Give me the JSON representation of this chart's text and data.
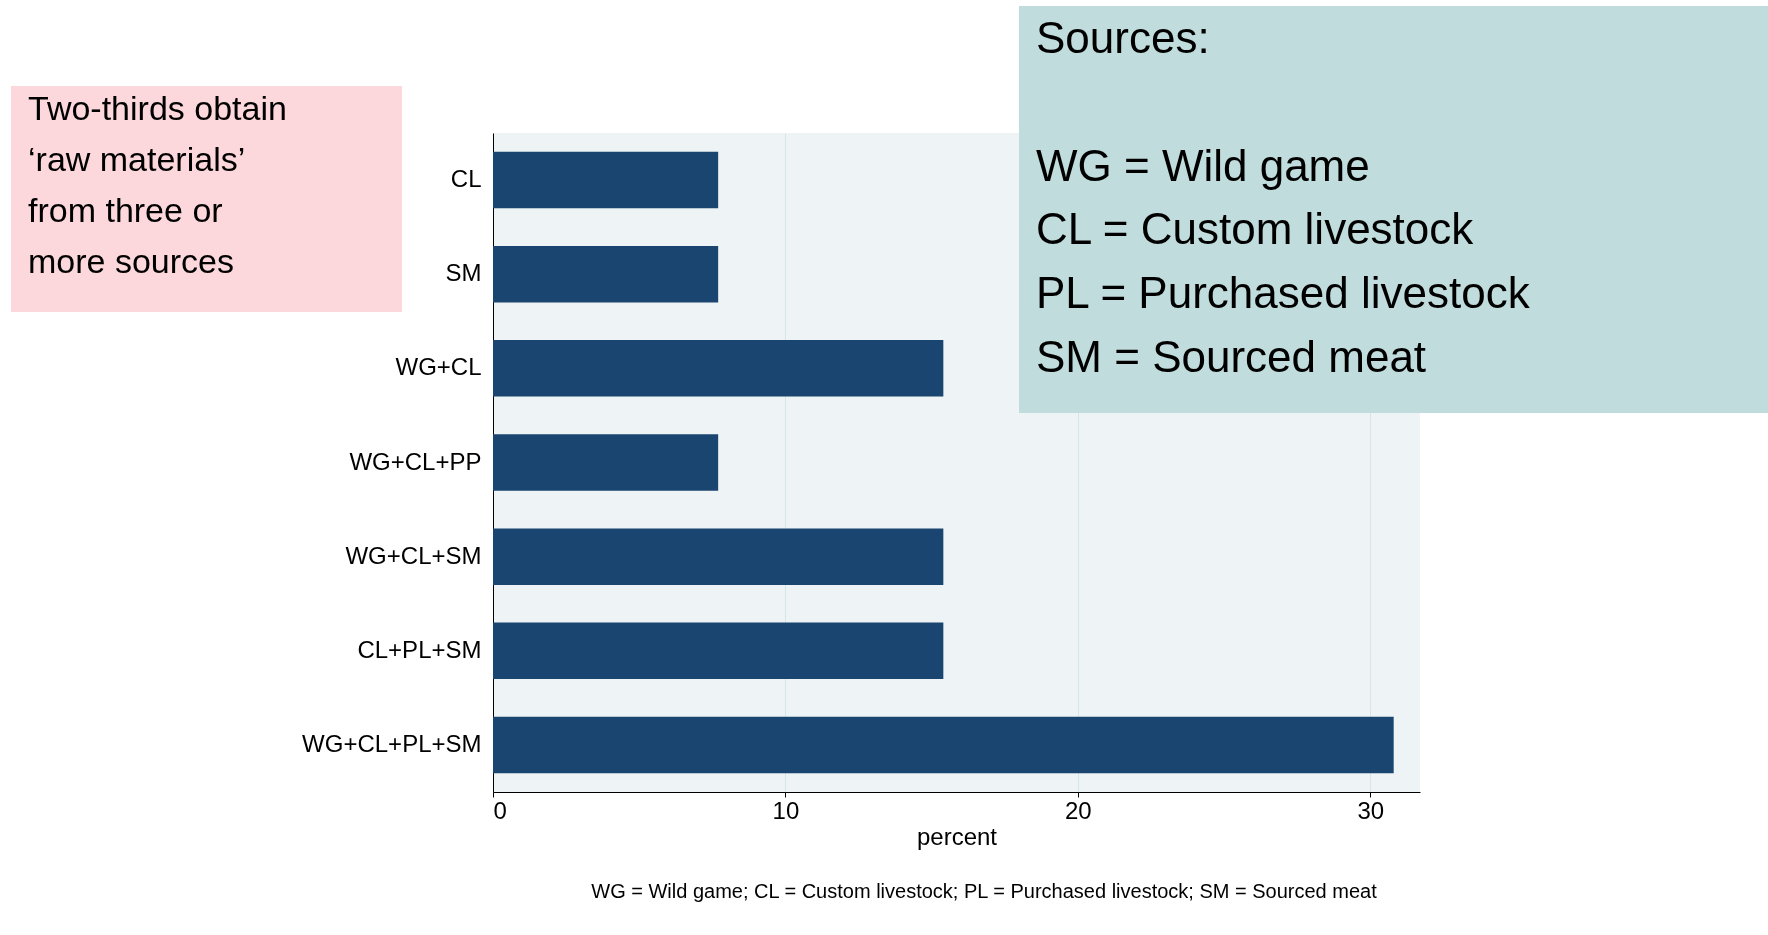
{
  "chart_data": {
    "type": "bar",
    "orientation": "horizontal",
    "xlabel": "percent",
    "categories": [
      "CL",
      "SM",
      "WG+CL",
      "WG+CL+PP",
      "WG+CL+SM",
      "CL+PL+SM",
      "WG+CL+PL+SM"
    ],
    "values": [
      7.7,
      7.7,
      15.4,
      7.7,
      15.4,
      15.4,
      30.8
    ],
    "color": "#1a4570",
    "xlim": [
      0,
      31.7
    ],
    "xticks": [
      0,
      10,
      20,
      30
    ],
    "grid": "x",
    "annotations": [
      "Two-thirds obtain\n‘raw materials’\nfrom three or\nmore sources",
      "Sources:\n\nWG = Wild game\nCL = Custom livestock\nPL = Purchased livestock\nSM = Sourced meat",
      "WG = Wild game; CL = Custom livestock; PL = Purchased livestock; SM = Sourced meat"
    ]
  }
}
